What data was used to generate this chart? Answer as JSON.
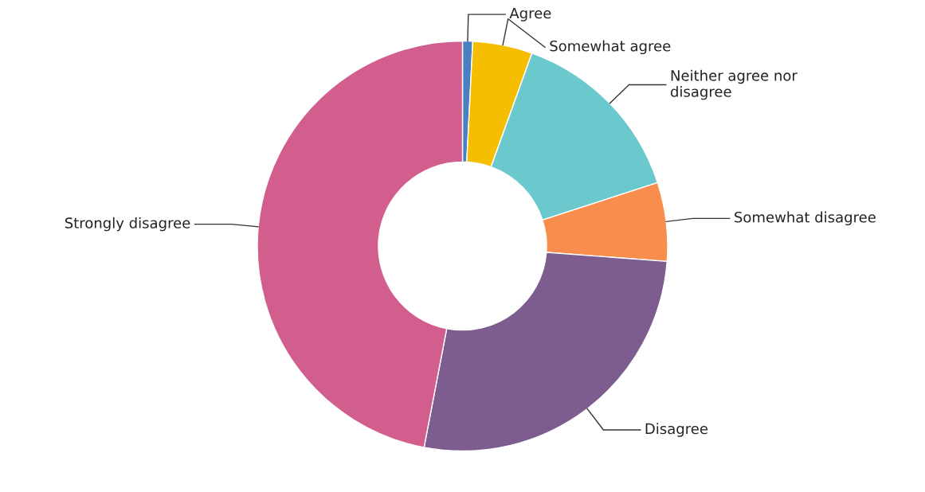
{
  "chart_data": {
    "type": "donut",
    "categories": [
      "Agree",
      "Somewhat agree",
      "Neither agree nor\ndisagree",
      "Somewhat disagree",
      "Disagree",
      "Strongly disagree"
    ],
    "values": [
      0.8,
      4.7,
      14.5,
      6.2,
      26.8,
      47.0
    ],
    "colors": [
      "#4a7fc1",
      "#f5be00",
      "#6bc9cd",
      "#f98d4e",
      "#7d5c8f",
      "#d25e8e"
    ],
    "legend": false
  }
}
